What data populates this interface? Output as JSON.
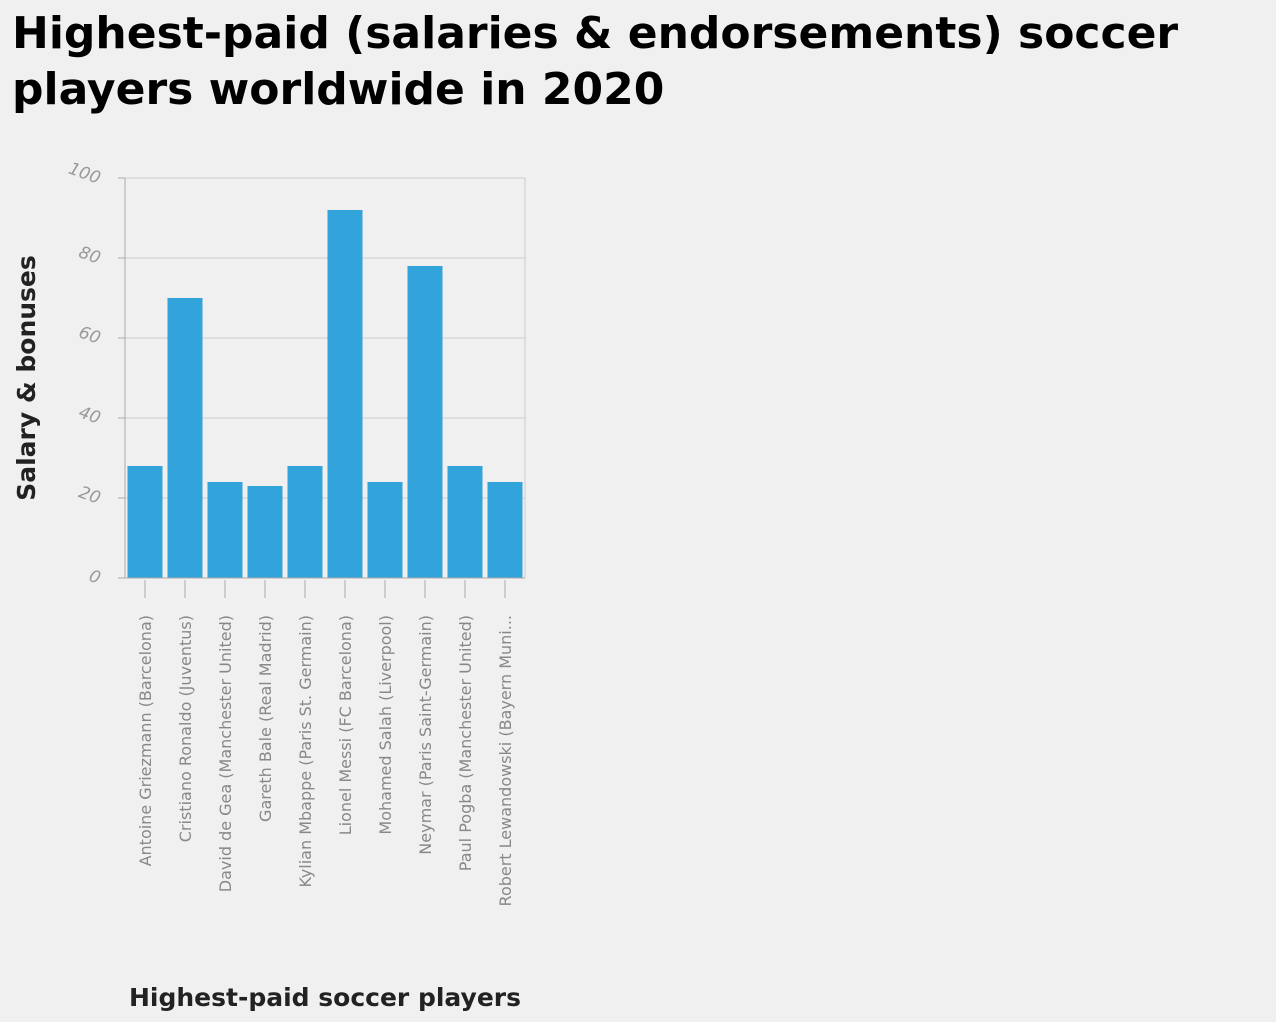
{
  "chart_data": {
    "type": "bar",
    "title": "Highest-paid (salaries & endorsements) soccer players worldwide in 2020",
    "xlabel": "Highest-paid soccer players",
    "ylabel": "Salary & bonuses",
    "categories": [
      "Antoine Griezmann (Barcelona)",
      "Cristiano Ronaldo (Juventus)",
      "David de Gea (Manchester United)",
      "Gareth Bale (Real Madrid)",
      "Kylian Mbappe (Paris St. Germain)",
      "Lionel Messi (FC Barcelona)",
      "Mohamed Salah (Liverpool)",
      "Neymar (Paris Saint-Germain)",
      "Paul Pogba (Manchester United)",
      "Robert Lewandowski (Bayern Muni..."
    ],
    "values": [
      28,
      70,
      24,
      23,
      28,
      92,
      24,
      78,
      28,
      24
    ],
    "ylim": [
      0,
      100
    ],
    "yticks": [
      "0",
      "20",
      "40",
      "60",
      "80",
      "100"
    ],
    "grid": true,
    "bar_color": "#33a3dc",
    "grid_color": "#cccccc"
  }
}
